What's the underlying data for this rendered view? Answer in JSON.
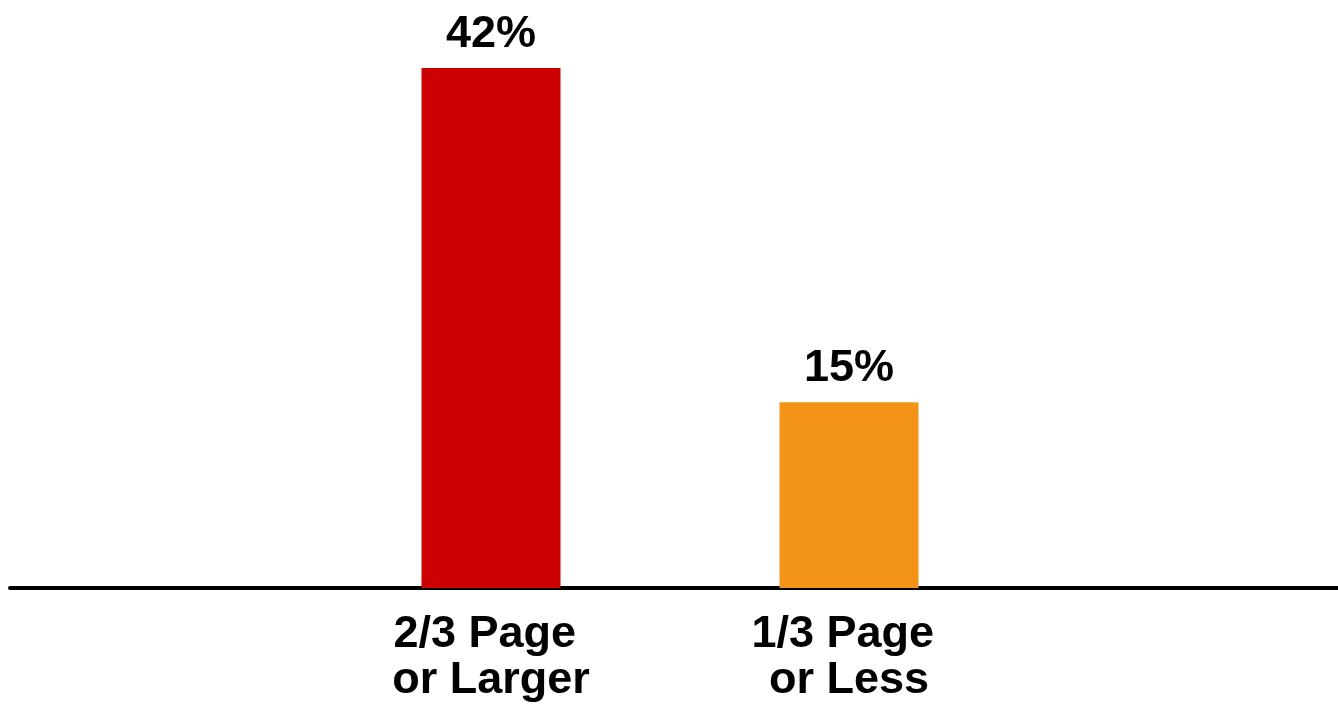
{
  "chart_data": {
    "type": "bar",
    "categories": [
      "2/3 Page or Larger",
      "1/3 Page or Less"
    ],
    "values": [
      42,
      15
    ],
    "colors": [
      "#cc0000",
      "#f39419"
    ],
    "value_labels": [
      "42%",
      "15%"
    ]
  }
}
